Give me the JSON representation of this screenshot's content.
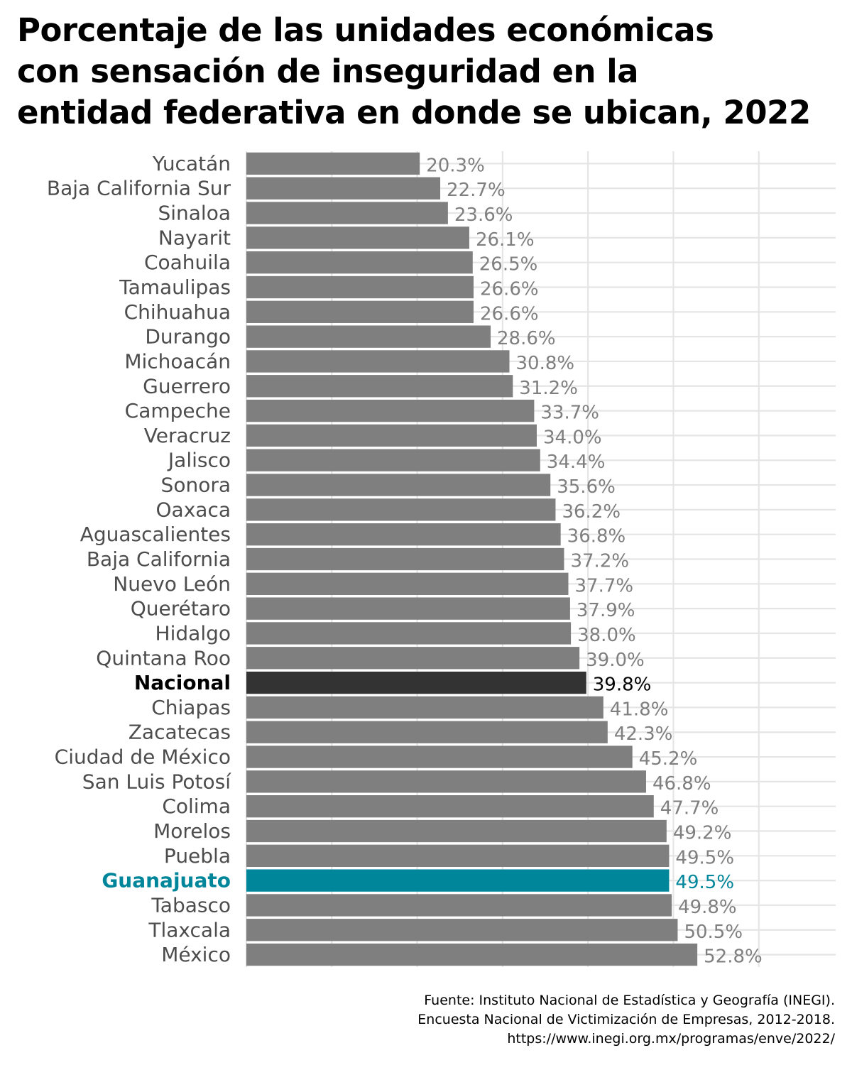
{
  "title": "Porcentaje de las unidades económicas\ncon sensación de inseguridad en la\nentidad federativa en donde se ubican, 2022",
  "source_lines": [
    "Fuente: Instituto Nacional de Estadística y Geografía (INEGI).",
    "Encuesta Nacional de Victimización de Empresas, 2012-2018.",
    "https://www.inegi.org.mx/programas/enve/2022/"
  ],
  "colors": {
    "bar_default": "#7f7f7f",
    "bar_national": "#333333",
    "bar_highlight": "#00869a",
    "label_default": "#4d4d4d",
    "value_default": "#7f7f7f",
    "grid": "#e5e5e5"
  },
  "chart_data": {
    "type": "bar",
    "orientation": "horizontal",
    "title": "Porcentaje de las unidades económicas con sensación de inseguridad en la entidad federativa en donde se ubican, 2022",
    "xlabel": "",
    "ylabel": "",
    "xlim": [
      0,
      69
    ],
    "grid": true,
    "categories": [
      "Yucatán",
      "Baja California Sur",
      "Sinaloa",
      "Nayarit",
      "Coahuila",
      "Tamaulipas",
      "Chihuahua",
      "Durango",
      "Michoacán",
      "Guerrero",
      "Campeche",
      "Veracruz",
      "Jalisco",
      "Sonora",
      "Oaxaca",
      "Aguascalientes",
      "Baja California",
      "Nuevo León",
      "Querétaro",
      "Hidalgo",
      "Quintana Roo",
      "Nacional",
      "Chiapas",
      "Zacatecas",
      "Ciudad de México",
      "San Luis Potosí",
      "Colima",
      "Morelos",
      "Puebla",
      "Guanajuato",
      "Tabasco",
      "Tlaxcala",
      "México"
    ],
    "values": [
      20.3,
      22.7,
      23.6,
      26.1,
      26.5,
      26.6,
      26.6,
      28.6,
      30.8,
      31.2,
      33.7,
      34.0,
      34.4,
      35.6,
      36.2,
      36.8,
      37.2,
      37.7,
      37.9,
      38.0,
      39.0,
      39.8,
      41.8,
      42.3,
      45.2,
      46.8,
      47.7,
      49.2,
      49.5,
      49.5,
      49.8,
      50.5,
      52.8
    ],
    "value_labels": [
      "20.3%",
      "22.7%",
      "23.6%",
      "26.1%",
      "26.5%",
      "26.6%",
      "26.6%",
      "28.6%",
      "30.8%",
      "31.2%",
      "33.7%",
      "34.0%",
      "34.4%",
      "35.6%",
      "36.2%",
      "36.8%",
      "37.2%",
      "37.7%",
      "37.9%",
      "38.0%",
      "39.0%",
      "39.8%",
      "41.8%",
      "42.3%",
      "45.2%",
      "46.8%",
      "47.7%",
      "49.2%",
      "49.5%",
      "49.5%",
      "49.8%",
      "50.5%",
      "52.8%"
    ],
    "highlight": {
      "Nacional": "national",
      "Guanajuato": "highlight"
    }
  }
}
